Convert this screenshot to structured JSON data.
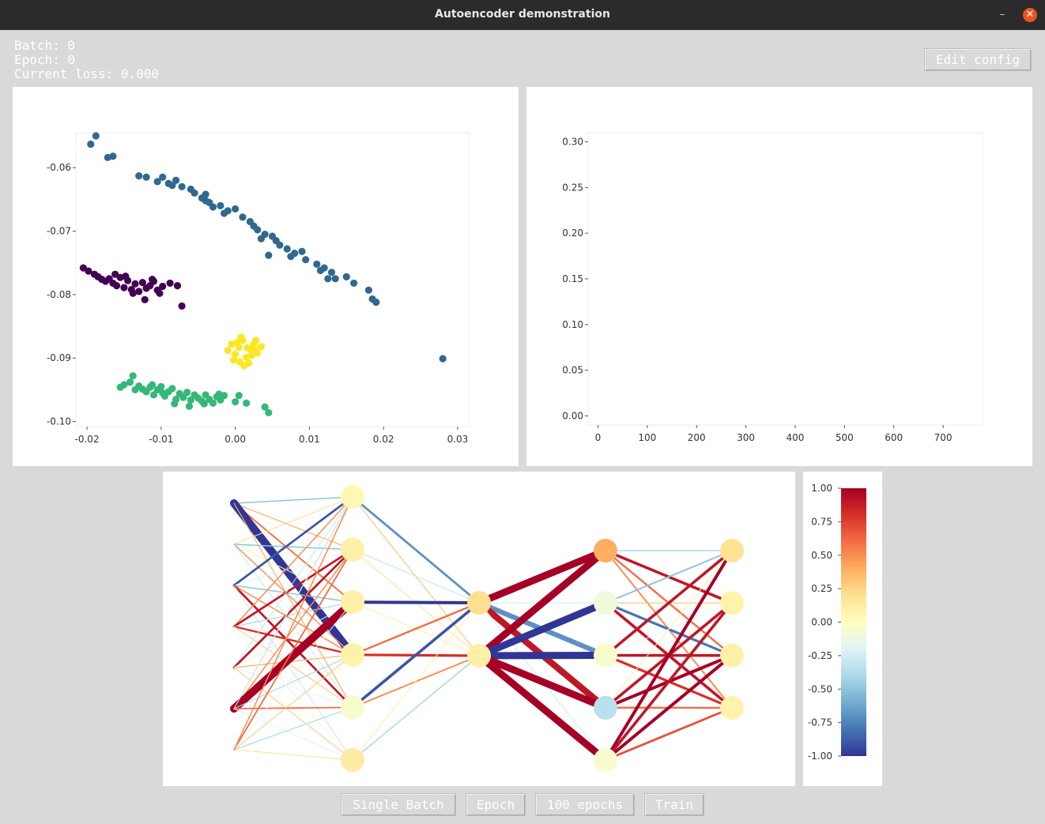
{
  "window": {
    "title": "Autoencoder demonstration"
  },
  "stats": {
    "batch": "Batch: 0",
    "epoch": "Epoch: 0",
    "loss": "Current loss: 0.000"
  },
  "buttons": {
    "edit_config": "Edit config",
    "single_batch": "Single Batch",
    "epoch": "Epoch",
    "hundred_epochs": "100 epochs",
    "train": "Train"
  },
  "chart_data": [
    {
      "type": "scatter",
      "title": "",
      "xlabel": "",
      "ylabel": "",
      "xlim": [
        -0.0215,
        0.0315
      ],
      "ylim": [
        -0.1008,
        -0.0545
      ],
      "xticks": [
        -0.02,
        -0.01,
        0.0,
        0.01,
        0.02,
        0.03
      ],
      "xtick_labels": [
        "-0.02",
        "-0.01",
        "0.00",
        "0.01",
        "0.02",
        "0.03"
      ],
      "yticks": [
        -0.06,
        -0.07,
        -0.08,
        -0.09,
        -0.1
      ],
      "ytick_labels": [
        "-0.06",
        "-0.07",
        "-0.08",
        "-0.09",
        "-0.10"
      ],
      "grid": false,
      "series": [
        {
          "color": "#31688e",
          "x": [
            -0.0195,
            -0.0188,
            -0.0172,
            -0.0165,
            -0.013,
            -0.012,
            -0.0105,
            -0.0098,
            -0.0085,
            -0.008,
            -0.0072,
            -0.006,
            -0.0055,
            -0.0045,
            -0.004,
            -0.0035,
            -0.003,
            -0.002,
            -0.0015,
            0.0,
            0.001,
            0.002,
            0.0025,
            0.003,
            0.004,
            0.005,
            0.0055,
            0.006,
            0.007,
            0.008,
            0.009,
            0.0095,
            0.011,
            0.0115,
            0.012,
            0.013,
            0.0135,
            0.015,
            0.016,
            0.018,
            0.0185,
            0.019,
            0.028,
            -0.009,
            -0.004,
            -0.001,
            0.0035,
            0.0045,
            0.0075,
            0.0125
          ],
          "y": [
            -0.0563,
            -0.055,
            -0.0584,
            -0.0582,
            -0.0613,
            -0.0615,
            -0.0622,
            -0.0615,
            -0.0628,
            -0.062,
            -0.063,
            -0.0634,
            -0.064,
            -0.0648,
            -0.0642,
            -0.0655,
            -0.0662,
            -0.066,
            -0.0672,
            -0.0665,
            -0.0678,
            -0.0685,
            -0.0692,
            -0.0698,
            -0.0705,
            -0.0708,
            -0.0715,
            -0.0722,
            -0.0728,
            -0.0735,
            -0.0732,
            -0.0745,
            -0.0752,
            -0.0762,
            -0.0758,
            -0.0765,
            -0.0775,
            -0.0772,
            -0.0782,
            -0.0793,
            -0.0807,
            -0.0812,
            -0.0901,
            -0.0625,
            -0.0652,
            -0.0668,
            -0.0712,
            -0.0738,
            -0.074,
            -0.0775
          ]
        },
        {
          "color": "#440154",
          "x": [
            -0.0205,
            -0.0198,
            -0.019,
            -0.0185,
            -0.018,
            -0.0175,
            -0.017,
            -0.0165,
            -0.016,
            -0.0155,
            -0.015,
            -0.0145,
            -0.014,
            -0.0135,
            -0.013,
            -0.0125,
            -0.012,
            -0.0115,
            -0.011,
            -0.0105,
            -0.0098,
            -0.0088,
            -0.0078,
            -0.0072,
            -0.0162,
            -0.0148,
            -0.0138,
            -0.0122,
            -0.0112,
            -0.0102
          ],
          "y": [
            -0.0758,
            -0.0763,
            -0.0768,
            -0.0772,
            -0.0776,
            -0.0779,
            -0.0775,
            -0.0782,
            -0.0786,
            -0.0773,
            -0.0789,
            -0.0778,
            -0.0792,
            -0.0783,
            -0.0795,
            -0.0781,
            -0.079,
            -0.0786,
            -0.0779,
            -0.0793,
            -0.0787,
            -0.0782,
            -0.0786,
            -0.0818,
            -0.0768,
            -0.0771,
            -0.0798,
            -0.0808,
            -0.0776,
            -0.0798
          ]
        },
        {
          "color": "#fde725",
          "x": [
            -0.001,
            -0.0005,
            0.0,
            0.0005,
            0.001,
            0.0015,
            0.002,
            0.0025,
            0.003,
            0.0035,
            -0.0002,
            0.0008,
            0.0018,
            0.0028,
            0.0012,
            0.0003,
            0.0022,
            0.0016,
            0.0006,
            0.0026
          ],
          "y": [
            -0.0888,
            -0.0878,
            -0.0894,
            -0.0883,
            -0.0872,
            -0.0899,
            -0.0886,
            -0.0878,
            -0.0892,
            -0.0882,
            -0.0903,
            -0.0867,
            -0.0908,
            -0.0872,
            -0.0912,
            -0.0875,
            -0.0896,
            -0.0884,
            -0.0906,
            -0.0886
          ]
        },
        {
          "color": "#35b779",
          "x": [
            -0.0155,
            -0.015,
            -0.0142,
            -0.0135,
            -0.013,
            -0.0125,
            -0.012,
            -0.0115,
            -0.011,
            -0.0105,
            -0.01,
            -0.0095,
            -0.009,
            -0.0085,
            -0.008,
            -0.0075,
            -0.007,
            -0.0065,
            -0.006,
            -0.0055,
            -0.005,
            -0.0045,
            -0.004,
            -0.0035,
            -0.003,
            -0.0025,
            -0.002,
            -0.0015,
            0.0,
            0.0005,
            0.0015,
            0.004,
            0.0045,
            -0.0138,
            -0.0112,
            -0.0098,
            -0.0082,
            -0.0062,
            -0.0042,
            -0.0022
          ],
          "y": [
            -0.0946,
            -0.0942,
            -0.0938,
            -0.095,
            -0.0944,
            -0.0949,
            -0.0953,
            -0.0946,
            -0.0958,
            -0.095,
            -0.0945,
            -0.096,
            -0.0953,
            -0.0948,
            -0.0965,
            -0.0956,
            -0.0962,
            -0.0954,
            -0.0966,
            -0.0958,
            -0.0963,
            -0.0968,
            -0.0958,
            -0.0965,
            -0.0971,
            -0.0961,
            -0.0966,
            -0.0959,
            -0.0969,
            -0.0959,
            -0.0971,
            -0.0977,
            -0.0986,
            -0.0928,
            -0.0942,
            -0.0955,
            -0.0972,
            -0.0976,
            -0.0972,
            -0.0957
          ]
        }
      ]
    },
    {
      "type": "line",
      "title": "",
      "xlabel": "",
      "ylabel": "",
      "xlim": [
        -20,
        780
      ],
      "ylim": [
        -0.01,
        0.31
      ],
      "xticks": [
        0,
        100,
        200,
        300,
        400,
        500,
        600,
        700
      ],
      "xtick_labels": [
        "0",
        "100",
        "200",
        "300",
        "400",
        "500",
        "600",
        "700"
      ],
      "yticks": [
        0.0,
        0.05,
        0.1,
        0.15,
        0.2,
        0.25,
        0.3
      ],
      "ytick_labels": [
        "0.00",
        "0.05",
        "0.10",
        "0.15",
        "0.20",
        "0.25",
        "0.30"
      ],
      "grid": false,
      "series": []
    }
  ],
  "network": {
    "layers": [
      {
        "nodes": []
      },
      {
        "nodes": [
          {
            "value": 0.05
          },
          {
            "value": 0.1
          },
          {
            "value": 0.1
          },
          {
            "value": 0.08
          },
          {
            "value": -0.05
          },
          {
            "value": 0.12
          }
        ]
      },
      {
        "nodes": [
          {
            "value": 0.2
          },
          {
            "value": 0.1
          }
        ]
      },
      {
        "nodes": [
          {
            "value": 0.4
          },
          {
            "value": -0.1
          },
          {
            "value": -0.05
          },
          {
            "value": -0.35
          },
          {
            "value": -0.05
          }
        ]
      },
      {
        "nodes": [
          {
            "value": 0.18
          },
          {
            "value": 0.08
          },
          {
            "value": 0.1
          },
          {
            "value": 0.08
          }
        ]
      }
    ],
    "weights": [
      [],
      [
        [
          -0.5,
          0.4,
          0.6,
          -1.0,
          0.4
        ],
        [
          0.2,
          -0.5,
          0.1,
          0.5,
          -0.3
        ],
        [
          -0.9,
          -0.2,
          -0.5,
          0.5,
          0.9,
          -0.3
        ],
        [
          0.5,
          0.9,
          -0.4,
          0.8,
          0.3,
          -0.1
        ],
        [
          -0.3,
          0.9,
          -0.2,
          0.4,
          -0.2,
          0.3
        ],
        [
          -0.5,
          0.5,
          1.0,
          -0.4,
          0.6,
          -0.2,
          -0.1
        ],
        [
          0.3,
          0.6,
          -0.2,
          0.3,
          -0.4,
          0.2,
          0.5
        ]
      ],
      [
        [
          -0.7,
          0.3
        ],
        [
          -0.3,
          0.2
        ],
        [
          -1.0,
          0.1
        ],
        [
          0.6,
          0.8
        ],
        [
          -0.9,
          0.5
        ],
        [
          0.1,
          -0.4
        ]
      ],
      [
        [
          1.0,
          -0.2,
          -0.7,
          0.9,
          -0.2
        ],
        [
          1.0,
          -1.0,
          -1.0,
          1.0,
          1.0
        ]
      ],
      [
        [
          -0.4,
          0.9,
          0.6,
          0.5
        ],
        [
          -0.5,
          0.3,
          -0.8,
          0.9
        ],
        [
          0.9,
          -0.2,
          0.9,
          0.8
        ],
        [
          0.1,
          0.9,
          1.0,
          0.6
        ],
        [
          1.0,
          0.9,
          1.0,
          0.7
        ]
      ]
    ]
  },
  "colorbar": {
    "ticks": [
      1.0,
      0.75,
      0.5,
      0.25,
      0.0,
      -0.25,
      -0.5,
      -0.75,
      -1.0
    ],
    "tick_labels": [
      "1.00",
      "0.75",
      "0.50",
      "0.25",
      "0.00",
      "-0.25",
      "-0.50",
      "-0.75",
      "-1.00"
    ],
    "colormap": [
      "#313695",
      "#4575b4",
      "#74add1",
      "#abd9e9",
      "#e0f3f8",
      "#ffffbf",
      "#fee090",
      "#fdae61",
      "#f46d43",
      "#d73027",
      "#a50026"
    ]
  }
}
